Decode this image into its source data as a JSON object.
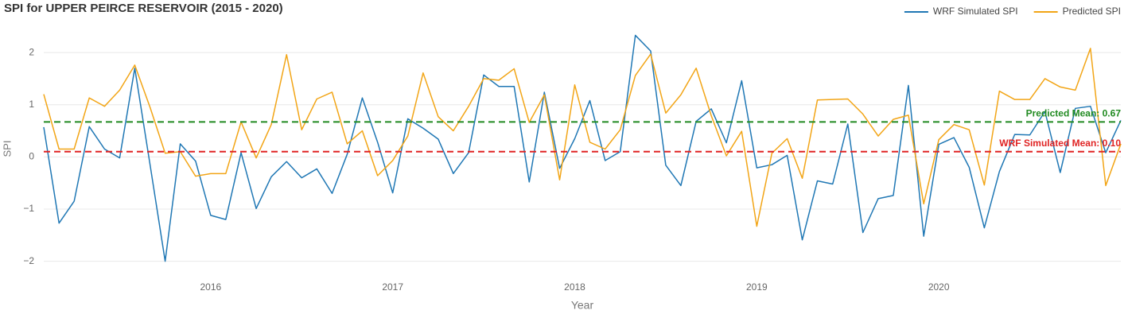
{
  "chart_data": {
    "type": "line",
    "title": "SPI for UPPER PEIRCE RESERVOIR (2015 - 2020)",
    "x_label": "Year",
    "y_label": "SPI",
    "x": [
      2015.083,
      2015.167,
      2015.25,
      2015.333,
      2015.417,
      2015.5,
      2015.583,
      2015.667,
      2015.75,
      2015.833,
      2015.917,
      2016,
      2016.083,
      2016.167,
      2016.25,
      2016.333,
      2016.417,
      2016.5,
      2016.583,
      2016.667,
      2016.75,
      2016.833,
      2016.917,
      2017,
      2017.083,
      2017.167,
      2017.25,
      2017.333,
      2017.417,
      2017.5,
      2017.583,
      2017.667,
      2017.75,
      2017.833,
      2017.917,
      2018,
      2018.083,
      2018.167,
      2018.25,
      2018.333,
      2018.417,
      2018.5,
      2018.583,
      2018.667,
      2018.75,
      2018.833,
      2018.917,
      2019,
      2019.083,
      2019.167,
      2019.25,
      2019.333,
      2019.417,
      2019.5,
      2019.583,
      2019.667,
      2019.75,
      2019.833,
      2019.917,
      2020,
      2020.083,
      2020.167,
      2020.25,
      2020.333,
      2020.417,
      2020.5,
      2020.583,
      2020.667,
      2020.75,
      2020.833,
      2020.917,
      2021
    ],
    "series": [
      {
        "name": "WRF Simulated SPI",
        "color": "#1f77b4",
        "values": [
          0.57,
          -1.27,
          -0.85,
          0.58,
          0.15,
          -0.02,
          1.7,
          -0.15,
          -2.0,
          0.25,
          -0.08,
          -1.12,
          -1.2,
          0.08,
          -0.99,
          -0.38,
          -0.09,
          -0.4,
          -0.23,
          -0.7,
          0.05,
          1.13,
          0.28,
          -0.69,
          0.73,
          0.55,
          0.34,
          -0.32,
          0.08,
          1.57,
          1.35,
          1.35,
          -0.48,
          1.24,
          -0.22,
          0.35,
          1.08,
          -0.07,
          0.1,
          2.33,
          2.03,
          -0.16,
          -0.55,
          0.68,
          0.92,
          0.27,
          1.46,
          -0.21,
          -0.15,
          0.03,
          -1.59,
          -0.46,
          -0.52,
          0.63,
          -1.45,
          -0.8,
          -0.74,
          1.37,
          -1.52,
          0.24,
          0.37,
          -0.2,
          -1.36,
          -0.28,
          0.43,
          0.42,
          0.87,
          -0.3,
          0.93,
          0.97,
          0.08,
          0.7
        ]
      },
      {
        "name": "Predicted SPI",
        "color": "#f2a516",
        "values": [
          1.2,
          0.15,
          0.15,
          1.13,
          0.97,
          1.28,
          1.76,
          0.95,
          0.07,
          0.1,
          -0.37,
          -0.32,
          -0.32,
          0.67,
          -0.02,
          0.62,
          1.96,
          0.52,
          1.11,
          1.24,
          0.25,
          0.5,
          -0.36,
          -0.07,
          0.4,
          1.61,
          0.77,
          0.5,
          0.97,
          1.5,
          1.47,
          1.69,
          0.66,
          1.19,
          -0.44,
          1.38,
          0.28,
          0.15,
          0.52,
          1.56,
          1.97,
          0.84,
          1.19,
          1.7,
          0.79,
          0.02,
          0.49,
          -1.33,
          0.07,
          0.35,
          -0.41,
          1.09,
          1.1,
          1.11,
          0.82,
          0.4,
          0.72,
          0.8,
          -0.9,
          0.33,
          0.62,
          0.52,
          -0.54,
          1.26,
          1.1,
          1.1,
          1.5,
          1.34,
          1.28,
          2.08,
          -0.55,
          0.25
        ]
      }
    ],
    "reference_lines": [
      {
        "value": 0.67,
        "label": "Predicted Mean: 0.67",
        "color": "#228b22"
      },
      {
        "value": 0.1,
        "label": "WRF Simulated Mean: 0.10",
        "color": "#e02424"
      }
    ],
    "xlim": [
      2015.083,
      2021
    ],
    "xticks": [
      2016,
      2017,
      2018,
      2019,
      2020
    ],
    "ylim": [
      -2.25,
      2.55
    ],
    "yticks": [
      {
        "value": -2,
        "label": "−2"
      },
      {
        "value": -1,
        "label": "−1"
      },
      0,
      1,
      2
    ],
    "grid": true,
    "legend": "top-right"
  }
}
